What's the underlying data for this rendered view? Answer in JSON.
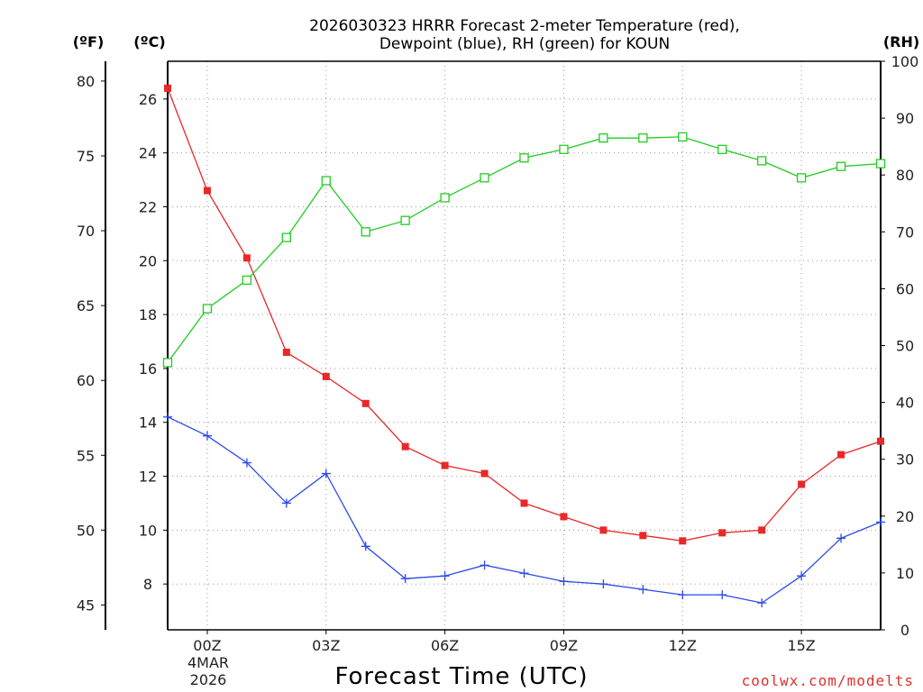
{
  "title": {
    "line1": "2026030323 HRRR Forecast 2-meter Temperature (red),",
    "line2": "Dewpoint (blue), RH (green) for KOUN"
  },
  "units": {
    "fahrenheit": "(ºF)",
    "celsius": "(ºC)",
    "rh": "(RH)"
  },
  "watermark": "coolwx.com/modelts",
  "chart_data": {
    "type": "line",
    "title": "2026030323 HRRR Forecast 2-meter Temperature (red), Dewpoint (blue), RH (green) for KOUN",
    "xlabel": "Forecast Time (UTC)",
    "date_label": [
      "4MAR",
      "2026"
    ],
    "x_hours": [
      -1,
      0,
      1,
      2,
      3,
      4,
      5,
      6,
      7,
      8,
      9,
      10,
      11,
      12,
      13,
      14,
      15,
      16,
      17
    ],
    "x_ticks": [
      {
        "hour": 0,
        "label": "00Z"
      },
      {
        "hour": 3,
        "label": "03Z"
      },
      {
        "hour": 6,
        "label": "06Z"
      },
      {
        "hour": 9,
        "label": "09Z"
      },
      {
        "hour": 12,
        "label": "12Z"
      },
      {
        "hour": 15,
        "label": "15Z"
      }
    ],
    "xlim": [
      -1,
      17
    ],
    "y_celsius": {
      "label": "(ºC)",
      "lim": [
        6.3,
        27.4
      ],
      "ticks": [
        8,
        10,
        12,
        14,
        16,
        18,
        20,
        22,
        24,
        26
      ]
    },
    "y_fahrenheit": {
      "label": "(ºF)",
      "ticks": [
        45,
        50,
        55,
        60,
        65,
        70,
        75,
        80
      ]
    },
    "y_rh": {
      "label": "(RH)",
      "lim": [
        0,
        100
      ],
      "ticks": [
        0,
        10,
        20,
        30,
        40,
        50,
        60,
        70,
        80,
        90,
        100
      ]
    },
    "grid": true,
    "series": [
      {
        "name": "Temperature",
        "color": "#e8282a",
        "axis": "celsius",
        "marker": "filled-square",
        "values": [
          26.4,
          22.6,
          20.1,
          16.6,
          15.7,
          14.7,
          13.1,
          12.4,
          12.1,
          11.0,
          10.5,
          10.0,
          9.8,
          9.6,
          9.9,
          10.0,
          11.7,
          12.8,
          13.3
        ]
      },
      {
        "name": "Dewpoint",
        "color": "#2a4ae8",
        "axis": "celsius",
        "marker": "plus",
        "values": [
          14.2,
          13.5,
          12.5,
          11.0,
          12.1,
          9.4,
          8.2,
          8.3,
          8.7,
          8.4,
          8.1,
          8.0,
          7.8,
          7.6,
          7.6,
          7.3,
          8.3,
          9.7,
          10.3
        ]
      },
      {
        "name": "RH",
        "color": "#22cc22",
        "axis": "rh",
        "marker": "open-square",
        "values": [
          47,
          56.5,
          61.5,
          69,
          79,
          70,
          72,
          76,
          79.5,
          83,
          84.5,
          86.5,
          86.5,
          86.7,
          84.5,
          82.5,
          79.5,
          81.5,
          82
        ]
      }
    ]
  }
}
